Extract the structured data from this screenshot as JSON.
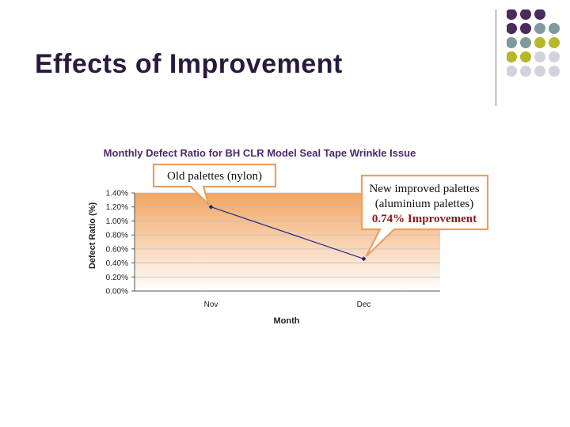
{
  "slide": {
    "title": "Effects of Improvement"
  },
  "decoration": {
    "dot_colors": [
      "#4b2a5e",
      "#7f9a9a",
      "#b4b82a",
      "#d2d2dc"
    ]
  },
  "chart_data": {
    "type": "line",
    "title": "Monthly Defect Ratio for BH CLR Model Seal Tape Wrinkle Issue",
    "xlabel": "Month",
    "ylabel": "Defect Ratio (%)",
    "categories": [
      "Nov",
      "Dec"
    ],
    "values": [
      1.2,
      0.46
    ],
    "ylim": [
      0,
      1.4
    ],
    "yticks": [
      "0.00%",
      "0.20%",
      "0.40%",
      "0.60%",
      "0.80%",
      "1.00%",
      "1.20%",
      "1.40%"
    ],
    "grid": true,
    "line_color": "#1f2a8c",
    "plot_gradient": [
      "#f3a460",
      "#ffffff"
    ],
    "annotations": [
      {
        "target": "Nov",
        "lines": [
          "Old palettes (nylon)"
        ]
      },
      {
        "target": "Dec",
        "lines": [
          "New improved palettes",
          "(aluminium palettes)",
          "0.74% Improvement"
        ]
      }
    ]
  }
}
